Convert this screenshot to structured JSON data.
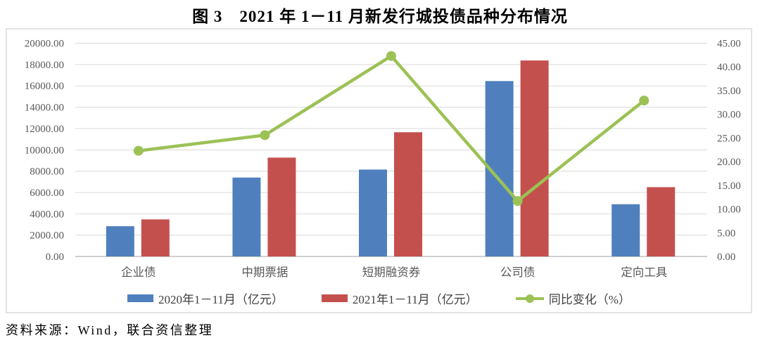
{
  "title": "图 3　2021 年 1－11 月新发行城投债品种分布情况",
  "source_note": "资料来源：Wind，联合资信整理",
  "colors": {
    "bar_2020": "#4F80BD",
    "bar_2021": "#C4504D",
    "line_yoy": "#9CC155",
    "grid": "#D9D9D9",
    "axis_line": "#BFBFBF",
    "axis_text": "#595959"
  },
  "chart_data": {
    "type": "bar",
    "subtype": "grouped bars with overlaid line on secondary axis",
    "title": "图 3　2021 年 1－11 月新发行城投债品种分布情况",
    "categories": [
      "企业债",
      "中期票据",
      "短期融资券",
      "公司债",
      "定向工具"
    ],
    "series": [
      {
        "name": "2020年1－11月（亿元）",
        "type": "bar",
        "axis": "left",
        "values": [
          2840,
          7400,
          8150,
          16450,
          4900
        ]
      },
      {
        "name": "2021年1－11月（亿元）",
        "type": "bar",
        "axis": "left",
        "values": [
          3475,
          9270,
          11650,
          18380,
          6500
        ]
      },
      {
        "name": "同比变化（%）",
        "type": "line",
        "axis": "right",
        "values": [
          22.3,
          25.6,
          42.3,
          11.7,
          32.9
        ]
      }
    ],
    "left_axis": {
      "min": 0,
      "max": 20000,
      "step": 2000,
      "tick_labels": [
        "0.00",
        "2000.00",
        "4000.00",
        "6000.00",
        "8000.00",
        "10000.00",
        "12000.00",
        "14000.00",
        "16000.00",
        "18000.00",
        "20000.00"
      ]
    },
    "right_axis": {
      "min": 0,
      "max": 45,
      "step": 5,
      "tick_labels": [
        "0.00",
        "5.00",
        "10.00",
        "15.00",
        "20.00",
        "25.00",
        "30.00",
        "35.00",
        "40.00",
        "45.00"
      ]
    },
    "grid": true,
    "legend_position": "bottom"
  }
}
